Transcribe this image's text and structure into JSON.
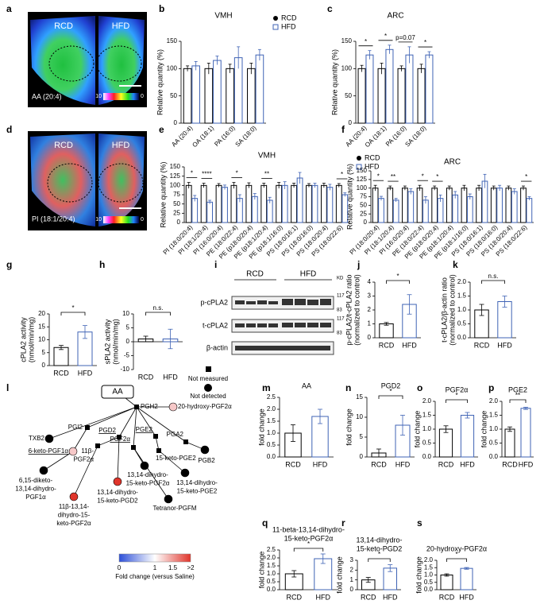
{
  "panel_labels": [
    "a",
    "b",
    "c",
    "d",
    "e",
    "f",
    "g",
    "h",
    "i",
    "j",
    "k",
    "l",
    "m",
    "n",
    "o",
    "p",
    "q",
    "r",
    "s"
  ],
  "heatmaps": [
    {
      "left": "RCD",
      "right": "HFD",
      "label": "AA (20:4)",
      "scale_max": "10",
      "scale_min": "0"
    },
    {
      "left": "RCD",
      "right": "HFD",
      "label": "PI (18:1/20:4)",
      "scale_max": "10",
      "scale_min": "0"
    }
  ],
  "blot": {
    "groups": [
      "RCD",
      "HFD"
    ],
    "unit": "KD",
    "rows": [
      {
        "name": "p-cPLA2",
        "markers": [
          "117",
          "83"
        ]
      },
      {
        "name": "t-cPLA2",
        "markers": [
          "117",
          "83"
        ]
      },
      {
        "name": "β-actin",
        "markers": []
      }
    ]
  },
  "pathway": {
    "nodes": [
      {
        "label": [
          "AA"
        ]
      },
      {
        "label": [
          "PGH2"
        ]
      },
      {
        "label": [
          "TXB2"
        ],
        "color": "#000000"
      },
      {
        "label": [
          "PGI2"
        ]
      },
      {
        "label": [
          "PGD2"
        ],
        "underline": true
      },
      {
        "label": [
          "PGF2α"
        ],
        "underline": true
      },
      {
        "label": [
          "PGE2"
        ],
        "underline": true
      },
      {
        "label": [
          "PGA2"
        ]
      },
      {
        "label": [
          "20-hydroxy-PGF2α"
        ],
        "color": "#f6c8c8"
      },
      {
        "label": [
          "6-keto-PGF1α"
        ],
        "color": "#f6c8c8",
        "underline": true
      },
      {
        "label": [
          "6,15-diketo-",
          "13,14-dihydro-",
          "PGF1α"
        ],
        "color": "#000000"
      },
      {
        "label": [
          "11β-",
          "PGF2α"
        ]
      },
      {
        "label": [
          "15-keto-PGE2"
        ]
      },
      {
        "label": [
          "PGB2"
        ],
        "color": "#000000"
      },
      {
        "label": [
          "11β-13,14-",
          "dihydro-15-",
          "keto-PGF2α"
        ],
        "color": "#e0352b"
      },
      {
        "label": [
          "13,14-dihydro-",
          "15-keto-PGD2"
        ],
        "color": "#e0352b"
      },
      {
        "label": [
          "13,14-dihydro-",
          "15-keto-PGF2α"
        ],
        "color": "#000000"
      },
      {
        "label": [
          "13,14-dihydro-",
          "15-keto-PGE2"
        ],
        "color": "#000000"
      },
      {
        "label": [
          "Tetranor-PGFM"
        ],
        "color": "#000000"
      }
    ],
    "legend": {
      "not_measured": "Not measured",
      "not_detected": "Not detected",
      "colorbar_title": "Fold change (versus Saline)",
      "colorbar_ticks": [
        0,
        1,
        1.5,
        {
          "value": 2,
          "label": ">2"
        }
      ],
      "colorbar_lim": [
        0,
        2
      ]
    }
  },
  "chart_data": [
    {
      "type": "grouped_bar",
      "title": "VMH",
      "ylabel": [
        "Relative quantity (%)"
      ],
      "categories": [
        "AA (20:4)",
        "OA (18:1)",
        "PA (16:0)",
        "SA (18:0)"
      ],
      "series": [
        {
          "name": "RCD",
          "color": "#000000",
          "values": [
            100,
            100,
            100,
            100
          ],
          "errors": [
            5,
            10,
            8,
            10
          ]
        },
        {
          "name": "HFD",
          "color": "#3f63b5",
          "values": [
            105,
            115,
            120,
            125
          ],
          "errors": [
            8,
            8,
            20,
            10
          ]
        }
      ],
      "ylim": [
        0,
        150
      ],
      "yticks": [
        0,
        50,
        100,
        150
      ],
      "legend": "top-right",
      "annotations": []
    },
    {
      "type": "grouped_bar",
      "title": "ARC",
      "ylabel": [
        "Relative quantity (%)"
      ],
      "categories": [
        "AA (20:4)",
        "OA (18:1)",
        "PA (16:0)",
        "SA (18:0)"
      ],
      "series": [
        {
          "name": "RCD",
          "color": "#000000",
          "values": [
            100,
            100,
            100,
            100
          ],
          "errors": [
            6,
            10,
            5,
            8
          ]
        },
        {
          "name": "HFD",
          "color": "#3f63b5",
          "values": [
            125,
            135,
            125,
            125
          ],
          "errors": [
            8,
            8,
            15,
            6
          ]
        }
      ],
      "ylim": [
        0,
        150
      ],
      "yticks": [
        0,
        50,
        100,
        150
      ],
      "annotations": [
        {
          "text": "*",
          "category": "AA (20:4)"
        },
        {
          "text": "*",
          "category": "OA (18:1)"
        },
        {
          "text": "p=0.07",
          "category": "PA (16:0)"
        },
        {
          "text": "*",
          "category": "SA (18:0)"
        }
      ]
    },
    {
      "type": "grouped_bar",
      "title": "VMH",
      "ylabel": [
        "Relative quantity (%)"
      ],
      "categories": [
        "PI (18:0/20:4)",
        "PI (18:1/20:4)",
        "PI (16:0/20:4)",
        "PE (18:0/22:4)",
        "PE (p18:0/20:4)",
        "PE (p18:1/20:4)",
        "PE (p18:1/16:0)",
        "PS (18:0/16:1)",
        "PS (18:0/16:0)",
        "PS (18:0/20:4)",
        "PS (18:0/22:6)"
      ],
      "series": [
        {
          "name": "RCD",
          "color": "#000000",
          "values": [
            100,
            100,
            100,
            100,
            100,
            100,
            100,
            100,
            100,
            100,
            100
          ],
          "errors": [
            8,
            6,
            5,
            8,
            7,
            6,
            8,
            6,
            5,
            6,
            5
          ]
        },
        {
          "name": "HFD",
          "color": "#3f63b5",
          "values": [
            65,
            55,
            95,
            65,
            70,
            60,
            100,
            120,
            100,
            95,
            75
          ],
          "errors": [
            8,
            5,
            6,
            10,
            8,
            8,
            10,
            15,
            6,
            8,
            5
          ]
        }
      ],
      "ylim": [
        0,
        150
      ],
      "yticks": [
        0,
        25,
        50,
        75,
        100,
        125,
        150
      ],
      "legend": "top-right",
      "annotations": [
        {
          "text": "*",
          "category": "PI (18:0/20:4)"
        },
        {
          "text": "****",
          "category": "PI (18:1/20:4)"
        },
        {
          "text": "*",
          "category": "PE (18:0/22:4)"
        },
        {
          "text": "**",
          "category": "PE (p18:1/20:4)"
        },
        {
          "text": "*",
          "category": "PS (18:0/22:6)"
        }
      ]
    },
    {
      "type": "grouped_bar",
      "title": "ARC",
      "ylabel": [
        "Relative quantity (%)"
      ],
      "categories": [
        "PI (18:0/20:4)",
        "PI (18:1/20:4)",
        "PI (16:0/20:4)",
        "PE (18:0/22:4)",
        "PE (p18:0/20:4)",
        "PE (p18:1/20:4)",
        "PE (p18:1/16:0)",
        "PS (18:0/16:1)",
        "PS (18:0/16:0)",
        "PS (18:0/20:4)",
        "PS (18:0/22:6)"
      ],
      "series": [
        {
          "name": "RCD",
          "color": "#000000",
          "values": [
            100,
            100,
            100,
            100,
            100,
            100,
            100,
            100,
            100,
            100,
            100
          ],
          "errors": [
            8,
            6,
            6,
            8,
            6,
            6,
            8,
            8,
            6,
            6,
            6
          ]
        },
        {
          "name": "HFD",
          "color": "#3f63b5",
          "values": [
            70,
            65,
            90,
            65,
            70,
            80,
            75,
            120,
            100,
            90,
            70
          ],
          "errors": [
            6,
            5,
            8,
            10,
            10,
            10,
            8,
            20,
            8,
            8,
            5
          ]
        }
      ],
      "ylim": [
        0,
        150
      ],
      "yticks": [
        0,
        25,
        50,
        75,
        100,
        125,
        150
      ],
      "annotations": [
        {
          "text": "*",
          "category": "PI (18:0/20:4)"
        },
        {
          "text": "**",
          "category": "PI (18:1/20:4)"
        },
        {
          "text": "*",
          "category": "PE (18:0/22:4)"
        },
        {
          "text": "*",
          "category": "PE (p18:0/20:4)"
        },
        {
          "text": "*",
          "category": "PS (18:0/22:6)"
        }
      ]
    },
    {
      "type": "pair_bar",
      "ylabel": [
        "cPLA2 activity",
        "(nmol/min/mg)"
      ],
      "categories": [
        "RCD",
        "HFD"
      ],
      "colors": [
        "#000000",
        "#3f63b5"
      ],
      "values": [
        7,
        13
      ],
      "errors": [
        0.8,
        2.5
      ],
      "ylim": [
        0,
        20
      ],
      "yticks": [
        0,
        5,
        10,
        15,
        20
      ],
      "annotation": "*"
    },
    {
      "type": "pair_bar",
      "ylabel": [
        "sPLA2 activity",
        "(nmol/min/mg)"
      ],
      "categories": [
        "RCD",
        "HFD"
      ],
      "colors": [
        "#000000",
        "#3f63b5"
      ],
      "values": [
        1,
        1
      ],
      "errors": [
        1,
        3.5
      ],
      "ylim": [
        -10,
        10
      ],
      "yticks": [
        -10,
        -5,
        0,
        5,
        10
      ],
      "annotation": "n.s."
    },
    {
      "type": "pair_bar",
      "ylabel": [
        "p-cPLA2/t-cPLA2 ratio",
        "(normalized to control)"
      ],
      "categories": [
        "RCD",
        "HFD"
      ],
      "colors": [
        "#000000",
        "#3f63b5"
      ],
      "values": [
        1,
        2.4
      ],
      "errors": [
        0.1,
        0.7
      ],
      "ylim": [
        0,
        4
      ],
      "yticks": [
        0,
        1,
        2,
        3,
        4
      ],
      "annotation": "*"
    },
    {
      "type": "pair_bar",
      "ylabel": [
        "t-cPLA2/β-actin ratio",
        "(normalized to control)"
      ],
      "categories": [
        "RCD",
        "HFD"
      ],
      "colors": [
        "#000000",
        "#3f63b5"
      ],
      "values": [
        1,
        1.3
      ],
      "errors": [
        0.2,
        0.2
      ],
      "ylim": [
        0,
        2
      ],
      "yticks": [
        {
          "value": 0,
          "label": "0.0"
        },
        0.5,
        {
          "value": 1,
          "label": "1.0"
        },
        1.5,
        {
          "value": 2,
          "label": "2.0"
        }
      ],
      "annotation": "n.s."
    },
    {
      "type": "pair_bar",
      "title": [
        "AA"
      ],
      "ylabel": [
        "fold change"
      ],
      "categories": [
        "RCD",
        "HFD"
      ],
      "colors": [
        "#000000",
        "#3f63b5"
      ],
      "values": [
        1.0,
        1.7
      ],
      "errors": [
        0.35,
        0.3
      ],
      "ylim": [
        0,
        2.5
      ],
      "yticks": [
        {
          "value": 0,
          "label": "0.0"
        },
        0.5,
        {
          "value": 1,
          "label": "1.0"
        },
        1.5,
        {
          "value": 2,
          "label": "2.0"
        },
        2.5
      ]
    },
    {
      "type": "pair_bar",
      "title": [
        "PGD2"
      ],
      "ylabel": [
        "fold change"
      ],
      "categories": [
        "RCD",
        "HFD"
      ],
      "colors": [
        "#000000",
        "#3f63b5"
      ],
      "values": [
        1,
        8
      ],
      "errors": [
        1,
        2.5
      ],
      "ylim": [
        0,
        15
      ],
      "yticks": [
        0,
        5,
        10,
        15
      ],
      "annotation": "*"
    },
    {
      "type": "pair_bar",
      "title": [
        "PGF2α"
      ],
      "ylabel": [
        "fold change"
      ],
      "categories": [
        "RCD",
        "HFD"
      ],
      "colors": [
        "#000000",
        "#3f63b5"
      ],
      "values": [
        1.0,
        1.5
      ],
      "errors": [
        0.12,
        0.1
      ],
      "ylim": [
        0,
        2
      ],
      "yticks": [
        {
          "value": 0,
          "label": "0.0"
        },
        0.5,
        {
          "value": 1,
          "label": "1.0"
        },
        1.5,
        {
          "value": 2,
          "label": "2.0"
        }
      ],
      "annotation": "*"
    },
    {
      "type": "pair_bar",
      "title": [
        "PGE2"
      ],
      "ylabel": [
        "fold change"
      ],
      "categories": [
        "RCD",
        "HFD"
      ],
      "colors": [
        "#000000",
        "#3f63b5"
      ],
      "values": [
        1.0,
        1.75
      ],
      "errors": [
        0.08,
        0.04
      ],
      "ylim": [
        0,
        2
      ],
      "yticks": [
        {
          "value": 0,
          "label": "0.0"
        },
        0.5,
        {
          "value": 1,
          "label": "1.0"
        },
        1.5,
        {
          "value": 2,
          "label": "2.0"
        }
      ],
      "annotation": "**"
    },
    {
      "type": "pair_bar",
      "title": [
        "11-beta-13,14-dihydro-",
        "15-keto-PGF2α"
      ],
      "ylabel": [
        "fold change"
      ],
      "categories": [
        "RCD",
        "HFD"
      ],
      "colors": [
        "#000000",
        "#3f63b5"
      ],
      "values": [
        1.0,
        1.95
      ],
      "errors": [
        0.2,
        0.3
      ],
      "ylim": [
        0,
        2.5
      ],
      "yticks": [
        {
          "value": 0,
          "label": "0.0"
        },
        0.5,
        {
          "value": 1,
          "label": "1.0"
        },
        1.5,
        {
          "value": 2,
          "label": "2.0"
        },
        2.5
      ],
      "annotation": "*"
    },
    {
      "type": "pair_bar",
      "title": [
        "13,14-dihydro-",
        "15-keto-PGD2"
      ],
      "ylabel": [
        "fold change"
      ],
      "categories": [
        "RCD",
        "HFD"
      ],
      "colors": [
        "#000000",
        "#3f63b5"
      ],
      "values": [
        1.0,
        2.2
      ],
      "errors": [
        0.25,
        0.35
      ],
      "ylim": [
        0,
        3
      ],
      "yticks": [
        0,
        1,
        2,
        3
      ],
      "annotation": "*"
    },
    {
      "type": "pair_bar",
      "title": [
        "20-hydroxy-PGF2α"
      ],
      "ylabel": [
        "fold change"
      ],
      "categories": [
        "RCD",
        "HFD"
      ],
      "colors": [
        "#000000",
        "#3f63b5"
      ],
      "values": [
        1.0,
        1.45
      ],
      "errors": [
        0.08,
        0.06
      ],
      "ylim": [
        0,
        2
      ],
      "yticks": [
        {
          "value": 0,
          "label": "0.0"
        },
        0.5,
        {
          "value": 1,
          "label": "1.0"
        },
        1.5,
        {
          "value": 2,
          "label": "2.0"
        }
      ],
      "annotation": "*"
    }
  ]
}
